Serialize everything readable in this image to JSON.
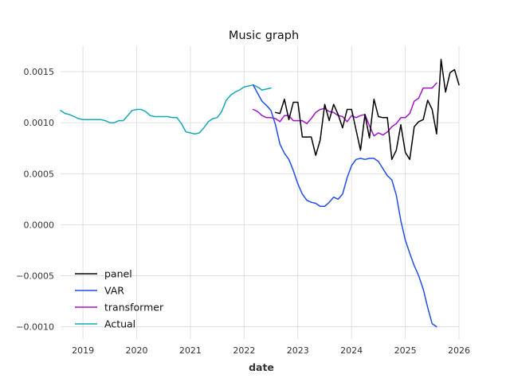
{
  "chart_data": {
    "type": "line",
    "title": "Music graph",
    "xlabel": "date",
    "ylabel": "",
    "xlim": [
      "2018-08",
      "2026-01"
    ],
    "ylim": [
      -0.00112,
      0.00175
    ],
    "x_ticks": [
      "2019",
      "2020",
      "2021",
      "2022",
      "2023",
      "2024",
      "2025",
      "2026"
    ],
    "y_ticks": [
      {
        "value": 0.0015,
        "label": "0.0015"
      },
      {
        "value": 0.001,
        "label": "0.0010"
      },
      {
        "value": 0.0005,
        "label": "0.0005"
      },
      {
        "value": 0.0,
        "label": "0.0000"
      },
      {
        "value": -0.0005,
        "label": "−0.0005"
      },
      {
        "value": -0.001,
        "label": "−0.0010"
      }
    ],
    "grid": true,
    "legend_position": "lower-left",
    "series": [
      {
        "name": "panel",
        "color": "#000000",
        "points": [
          [
            "2022-08",
            0.0011
          ],
          [
            "2022-09",
            0.00109
          ],
          [
            "2022-10",
            0.00123
          ],
          [
            "2022-11",
            0.00103
          ],
          [
            "2022-12",
            0.0012
          ],
          [
            "2023-01",
            0.0012
          ],
          [
            "2023-02",
            0.00086
          ],
          [
            "2023-03",
            0.00086
          ],
          [
            "2023-04",
            0.00086
          ],
          [
            "2023-05",
            0.00068
          ],
          [
            "2023-06",
            0.00083
          ],
          [
            "2023-07",
            0.00118
          ],
          [
            "2023-08",
            0.00102
          ],
          [
            "2023-09",
            0.00118
          ],
          [
            "2023-10",
            0.00108
          ],
          [
            "2023-11",
            0.00095
          ],
          [
            "2023-12",
            0.00113
          ],
          [
            "2024-01",
            0.00113
          ],
          [
            "2024-02",
            0.00093
          ],
          [
            "2024-03",
            0.00073
          ],
          [
            "2024-04",
            0.00108
          ],
          [
            "2024-05",
            0.00085
          ],
          [
            "2024-06",
            0.00123
          ],
          [
            "2024-07",
            0.00106
          ],
          [
            "2024-08",
            0.00105
          ],
          [
            "2024-09",
            0.00105
          ],
          [
            "2024-10",
            0.00064
          ],
          [
            "2024-11",
            0.00073
          ],
          [
            "2024-12",
            0.00098
          ],
          [
            "2025-01",
            0.00071
          ],
          [
            "2025-02",
            0.00064
          ],
          [
            "2025-03",
            0.00096
          ],
          [
            "2025-04",
            0.00101
          ],
          [
            "2025-05",
            0.00103
          ],
          [
            "2025-06",
            0.00122
          ],
          [
            "2025-07",
            0.00113
          ],
          [
            "2025-08",
            0.00089
          ],
          [
            "2025-09",
            0.00162
          ],
          [
            "2025-10",
            0.0013
          ],
          [
            "2025-11",
            0.00149
          ],
          [
            "2025-12",
            0.00152
          ],
          [
            "2026-01",
            0.00137
          ]
        ]
      },
      {
        "name": "VAR",
        "color": "#1f4ee6",
        "points": [
          [
            "2022-03",
            0.00137
          ],
          [
            "2022-04",
            0.00129
          ],
          [
            "2022-05",
            0.00121
          ],
          [
            "2022-06",
            0.00117
          ],
          [
            "2022-07",
            0.00112
          ],
          [
            "2022-08",
            0.00098
          ],
          [
            "2022-09",
            0.00079
          ],
          [
            "2022-10",
            0.0007
          ],
          [
            "2022-11",
            0.00064
          ],
          [
            "2022-12",
            0.00053
          ],
          [
            "2023-01",
            0.0004
          ],
          [
            "2023-02",
            0.0003
          ],
          [
            "2023-03",
            0.00024
          ],
          [
            "2023-04",
            0.00022
          ],
          [
            "2023-05",
            0.00021
          ],
          [
            "2023-06",
            0.00018
          ],
          [
            "2023-07",
            0.00018
          ],
          [
            "2023-08",
            0.00022
          ],
          [
            "2023-09",
            0.00027
          ],
          [
            "2023-10",
            0.00025
          ],
          [
            "2023-11",
            0.0003
          ],
          [
            "2023-12",
            0.00046
          ],
          [
            "2024-01",
            0.00058
          ],
          [
            "2024-02",
            0.00064
          ],
          [
            "2024-03",
            0.00065
          ],
          [
            "2024-04",
            0.00064
          ],
          [
            "2024-05",
            0.00065
          ],
          [
            "2024-06",
            0.00065
          ],
          [
            "2024-07",
            0.00062
          ],
          [
            "2024-08",
            0.00055
          ],
          [
            "2024-09",
            0.00048
          ],
          [
            "2024-10",
            0.00044
          ],
          [
            "2024-11",
            0.00029
          ],
          [
            "2024-12",
            4e-05
          ],
          [
            "2025-01",
            -0.00015
          ],
          [
            "2025-02",
            -0.00028
          ],
          [
            "2025-03",
            -0.0004
          ],
          [
            "2025-04",
            -0.0005
          ],
          [
            "2025-05",
            -0.00063
          ],
          [
            "2025-06",
            -0.00081
          ],
          [
            "2025-07",
            -0.00097
          ],
          [
            "2025-08",
            -0.001
          ]
        ]
      },
      {
        "name": "transformer",
        "color": "#a314c9",
        "points": [
          [
            "2022-03",
            0.00113
          ],
          [
            "2022-04",
            0.00111
          ],
          [
            "2022-05",
            0.00107
          ],
          [
            "2022-06",
            0.00105
          ],
          [
            "2022-07",
            0.00105
          ],
          [
            "2022-08",
            0.00104
          ],
          [
            "2022-09",
            0.00101
          ],
          [
            "2022-10",
            0.00107
          ],
          [
            "2022-11",
            0.00107
          ],
          [
            "2022-12",
            0.00102
          ],
          [
            "2023-01",
            0.00102
          ],
          [
            "2023-02",
            0.00102
          ],
          [
            "2023-03",
            0.00099
          ],
          [
            "2023-04",
            0.00104
          ],
          [
            "2023-05",
            0.0011
          ],
          [
            "2023-06",
            0.00113
          ],
          [
            "2023-07",
            0.00114
          ],
          [
            "2023-08",
            0.00111
          ],
          [
            "2023-09",
            0.0011
          ],
          [
            "2023-10",
            0.00107
          ],
          [
            "2023-11",
            0.00106
          ],
          [
            "2023-12",
            0.00101
          ],
          [
            "2024-01",
            0.00107
          ],
          [
            "2024-02",
            0.00105
          ],
          [
            "2024-03",
            0.00107
          ],
          [
            "2024-04",
            0.00108
          ],
          [
            "2024-05",
            0.00097
          ],
          [
            "2024-06",
            0.00087
          ],
          [
            "2024-07",
            0.0009
          ],
          [
            "2024-08",
            0.00088
          ],
          [
            "2024-09",
            0.00091
          ],
          [
            "2024-10",
            0.00096
          ],
          [
            "2024-11",
            0.00099
          ],
          [
            "2024-12",
            0.00105
          ],
          [
            "2025-01",
            0.00105
          ],
          [
            "2025-02",
            0.00109
          ],
          [
            "2025-03",
            0.00121
          ],
          [
            "2025-04",
            0.00124
          ],
          [
            "2025-05",
            0.00134
          ],
          [
            "2025-06",
            0.00134
          ],
          [
            "2025-07",
            0.00134
          ],
          [
            "2025-08",
            0.00139
          ]
        ]
      },
      {
        "name": "Actual",
        "color": "#14a8b8",
        "points": [
          [
            "2018-08",
            0.00112
          ],
          [
            "2018-09",
            0.00109
          ],
          [
            "2018-10",
            0.00108
          ],
          [
            "2018-11",
            0.00106
          ],
          [
            "2018-12",
            0.00104
          ],
          [
            "2019-01",
            0.00103
          ],
          [
            "2019-02",
            0.00103
          ],
          [
            "2019-03",
            0.00103
          ],
          [
            "2019-04",
            0.00103
          ],
          [
            "2019-05",
            0.00103
          ],
          [
            "2019-06",
            0.00102
          ],
          [
            "2019-07",
            0.001
          ],
          [
            "2019-08",
            0.001
          ],
          [
            "2019-09",
            0.00102
          ],
          [
            "2019-10",
            0.00102
          ],
          [
            "2019-11",
            0.00107
          ],
          [
            "2019-12",
            0.00112
          ],
          [
            "2020-01",
            0.00113
          ],
          [
            "2020-02",
            0.00113
          ],
          [
            "2020-03",
            0.00111
          ],
          [
            "2020-04",
            0.00107
          ],
          [
            "2020-05",
            0.00106
          ],
          [
            "2020-06",
            0.00106
          ],
          [
            "2020-07",
            0.00106
          ],
          [
            "2020-08",
            0.00106
          ],
          [
            "2020-09",
            0.00105
          ],
          [
            "2020-10",
            0.00105
          ],
          [
            "2020-11",
            0.00099
          ],
          [
            "2020-12",
            0.00091
          ],
          [
            "2021-01",
            0.0009
          ],
          [
            "2021-02",
            0.00089
          ],
          [
            "2021-03",
            0.0009
          ],
          [
            "2021-04",
            0.00095
          ],
          [
            "2021-05",
            0.00101
          ],
          [
            "2021-06",
            0.00104
          ],
          [
            "2021-07",
            0.00105
          ],
          [
            "2021-08",
            0.00111
          ],
          [
            "2021-09",
            0.00122
          ],
          [
            "2021-10",
            0.00127
          ],
          [
            "2021-11",
            0.0013
          ],
          [
            "2021-12",
            0.00132
          ],
          [
            "2022-01",
            0.00135
          ],
          [
            "2022-02",
            0.00136
          ],
          [
            "2022-03",
            0.00137
          ],
          [
            "2022-04",
            0.00135
          ],
          [
            "2022-05",
            0.00132
          ],
          [
            "2022-06",
            0.00133
          ],
          [
            "2022-07",
            0.00134
          ]
        ]
      }
    ],
    "legend_order": [
      "panel",
      "VAR",
      "transformer",
      "Actual"
    ]
  }
}
